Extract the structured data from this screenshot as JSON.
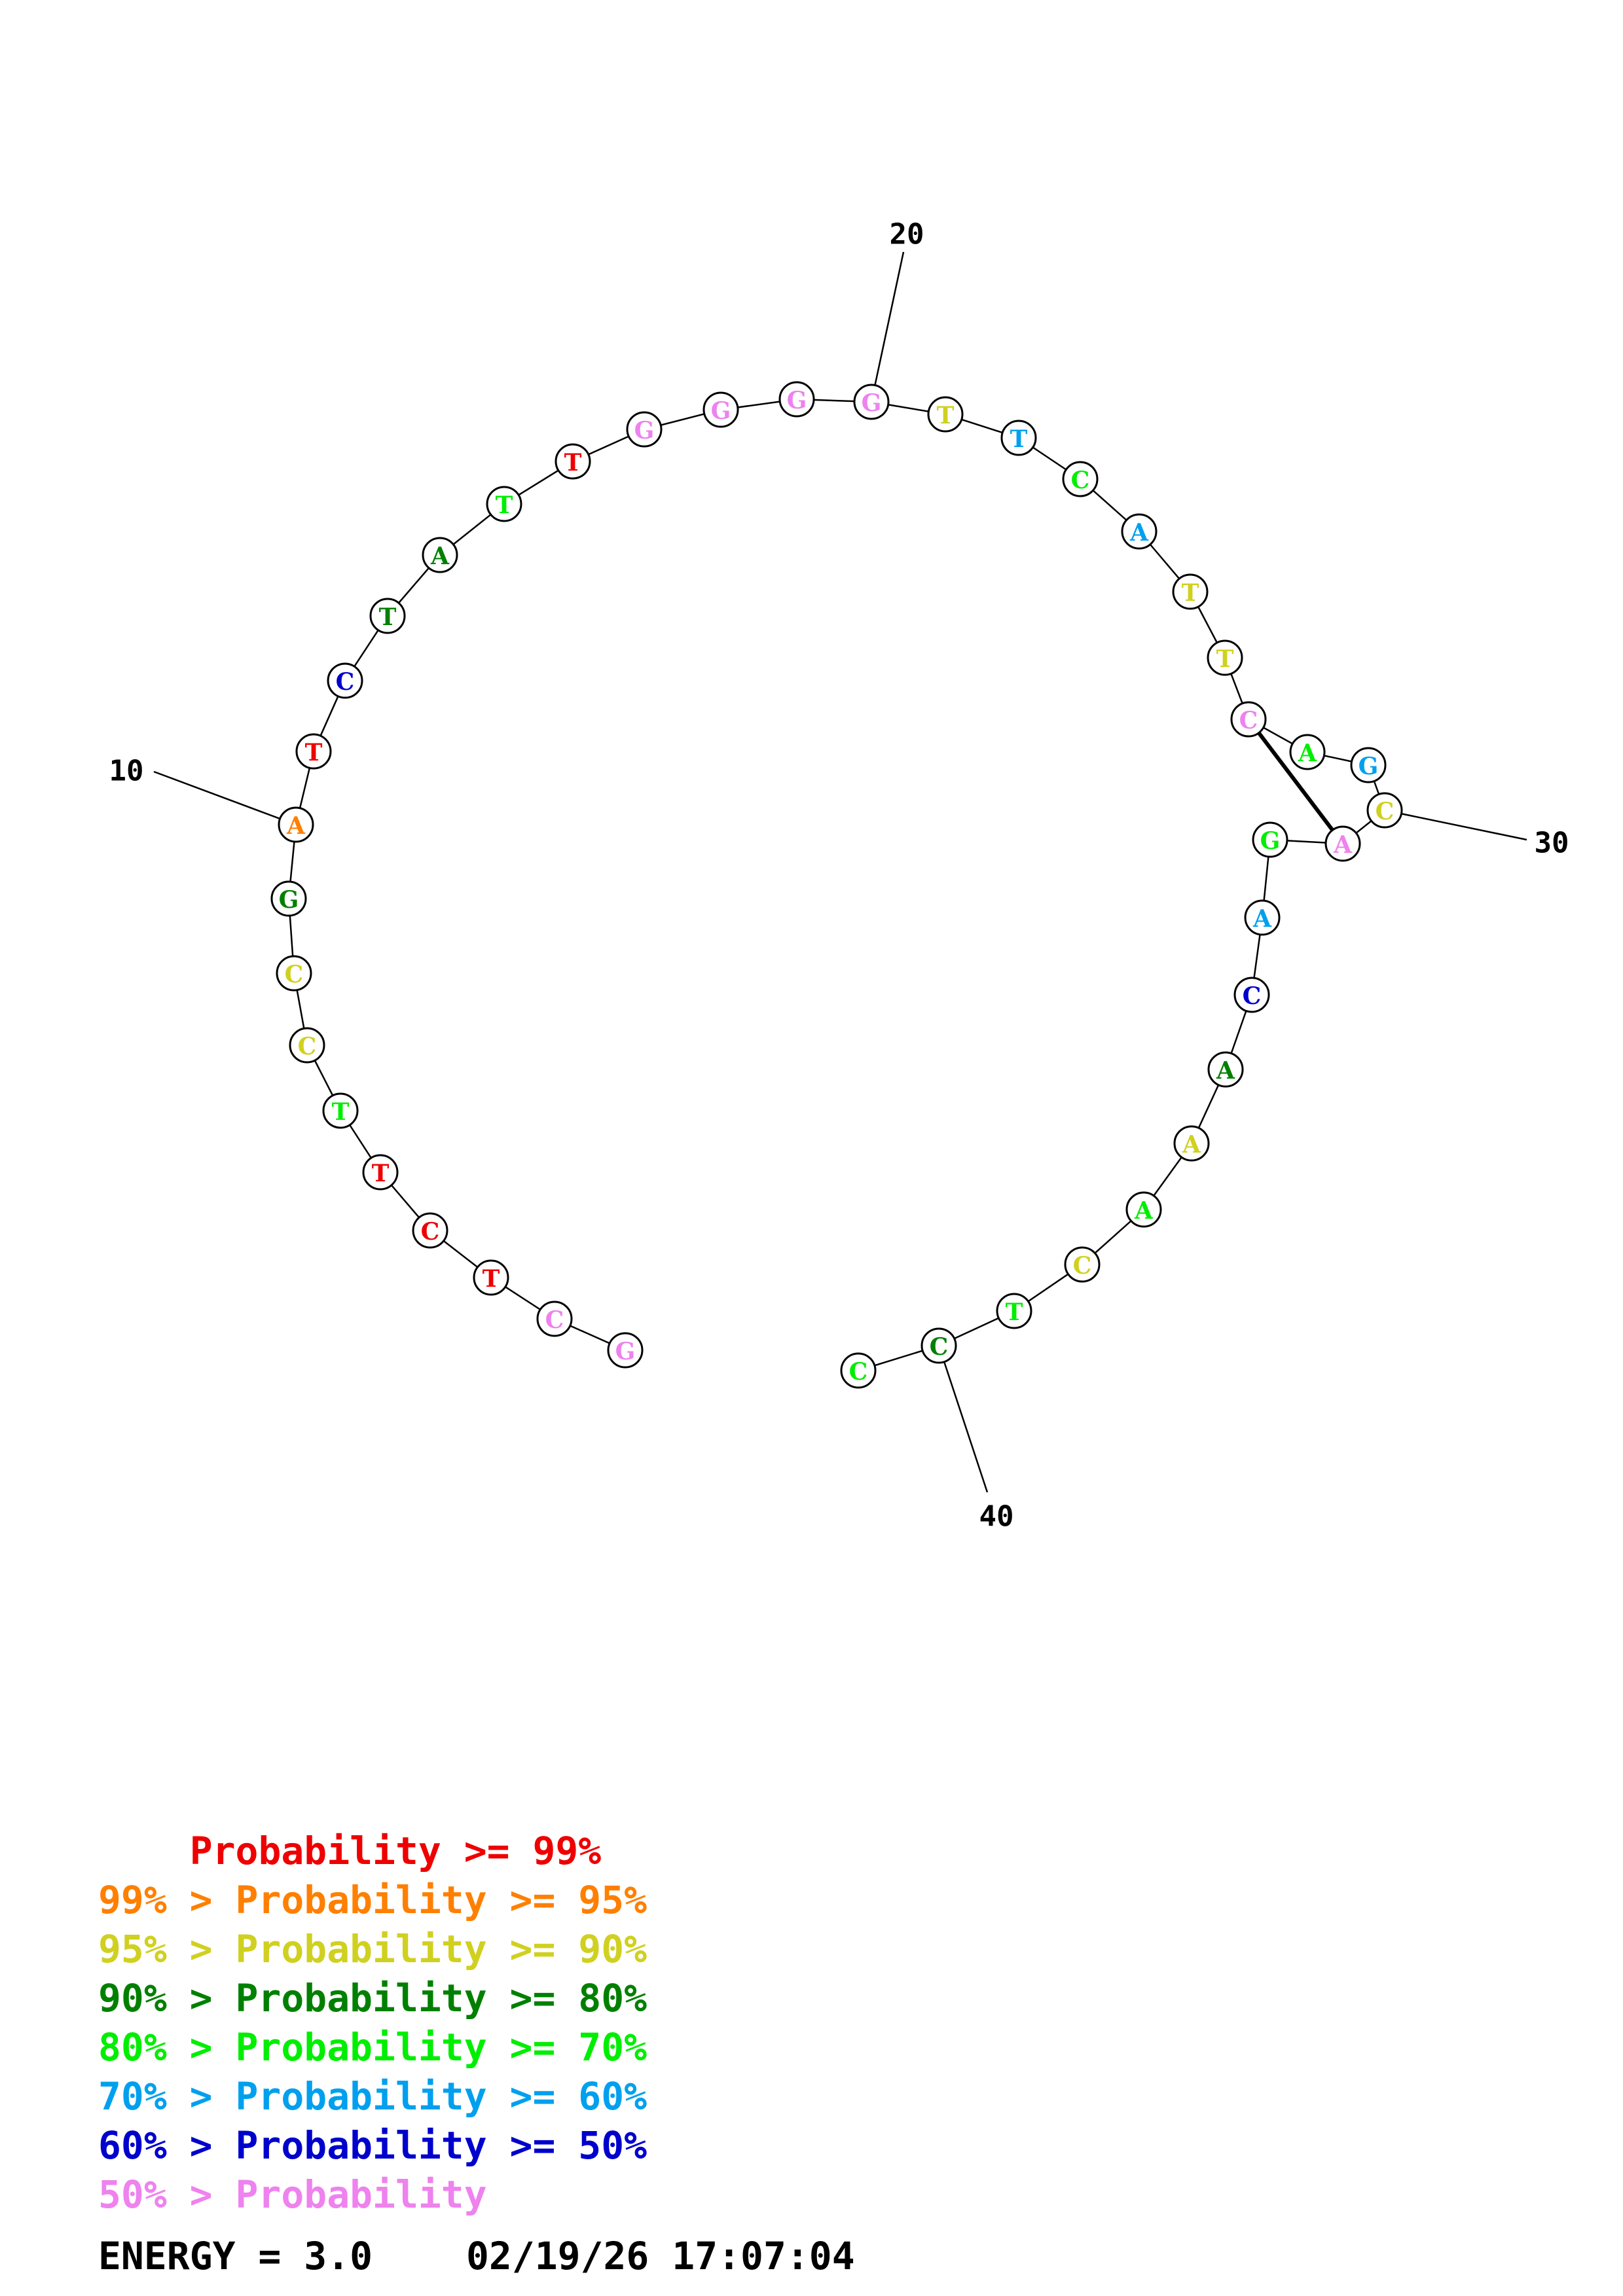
{
  "sequence": [
    "G",
    "C",
    "T",
    "C",
    "T",
    "T",
    "C",
    "C",
    "G",
    "A",
    "T",
    "C",
    "T",
    "A",
    "T",
    "T",
    "G",
    "G",
    "G",
    "G",
    "T",
    "T",
    "C",
    "A",
    "T",
    "T",
    "C",
    "A",
    "G",
    "C",
    "A",
    "G",
    "A",
    "C",
    "A",
    "A",
    "A",
    "C",
    "T",
    "C",
    "C"
  ],
  "probability_bins": [
    0,
    0,
    7,
    7,
    7,
    3,
    5,
    5,
    4,
    6,
    7,
    1,
    4,
    4,
    3,
    7,
    0,
    0,
    0,
    0,
    5,
    2,
    3,
    2,
    5,
    5,
    0,
    3,
    2,
    5,
    0,
    3,
    2,
    1,
    4,
    5,
    3,
    5,
    3,
    4,
    3
  ],
  "pairs": [
    [
      27,
      31
    ]
  ],
  "numbering": [
    {
      "index": 10,
      "label": "10"
    },
    {
      "index": 20,
      "label": "20"
    },
    {
      "index": 30,
      "label": "30"
    },
    {
      "index": 40,
      "label": "40"
    }
  ],
  "colors": [
    "#ee82ee",
    "#0000cd",
    "#00a0ee",
    "#00ee00",
    "#008000",
    "#d0d020",
    "#ff7f00",
    "#ee0000"
  ],
  "legend": [
    {
      "prefix": "    ",
      "text": "Probability >= 99%",
      "color": "#ee0000"
    },
    {
      "prefix": "99% > ",
      "text": "Probability >= 95%",
      "color": "#ff7f00"
    },
    {
      "prefix": "95% > ",
      "text": "Probability >= 90%",
      "color": "#d0d020"
    },
    {
      "prefix": "90% > ",
      "text": "Probability >= 80%",
      "color": "#008000"
    },
    {
      "prefix": "80% > ",
      "text": "Probability >= 70%",
      "color": "#00ee00"
    },
    {
      "prefix": "70% > ",
      "text": "Probability >= 60%",
      "color": "#00a0ee"
    },
    {
      "prefix": "60% > ",
      "text": "Probability >= 50%",
      "color": "#0000cd"
    },
    {
      "prefix": "50% > ",
      "text": "Probability",
      "color": "#ee82ee"
    }
  ],
  "footer": {
    "energy": "ENERGY = 3.0",
    "timestamp": "02/19/26 17:07:04"
  }
}
